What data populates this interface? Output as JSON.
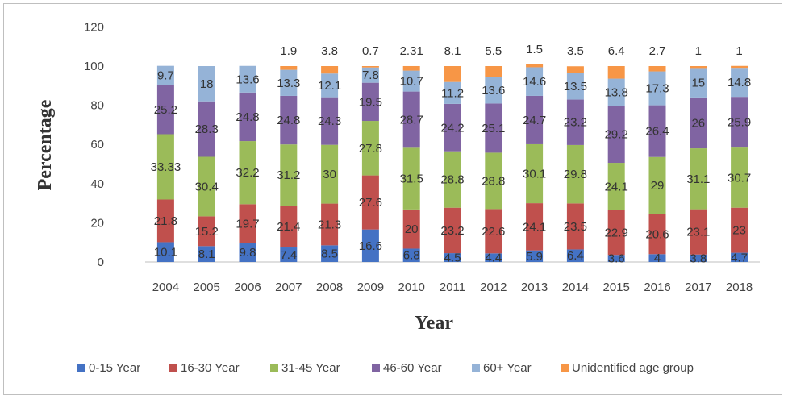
{
  "chart_data": {
    "type": "bar",
    "stacked": true,
    "xlabel": "Year",
    "ylabel": "Percentage",
    "ylim": [
      0,
      120
    ],
    "yticks": [
      0,
      20,
      40,
      60,
      80,
      100,
      120
    ],
    "grid": false,
    "legend_position": "bottom",
    "categories": [
      "2004",
      "2005",
      "2006",
      "2007",
      "2008",
      "2009",
      "2010",
      "2011",
      "2012",
      "2013",
      "2014",
      "2015",
      "2016",
      "2017",
      "2018"
    ],
    "series": [
      {
        "name": "0-15 Year",
        "color": "#4472c4",
        "values": [
          10.1,
          8.1,
          9.8,
          7.4,
          8.5,
          16.6,
          6.8,
          4.5,
          4.4,
          5.9,
          6.4,
          3.6,
          4,
          3.8,
          4.7
        ],
        "labels": [
          "10.1",
          "8.1",
          "9.8",
          "7.4",
          "8.5",
          "16.6",
          "6.8",
          "4.5",
          "4.4",
          "5.9",
          "6.4",
          "3.6",
          "4",
          "3.8",
          "4.7"
        ]
      },
      {
        "name": "16-30 Year",
        "color": "#c0504d",
        "values": [
          21.8,
          15.2,
          19.7,
          21.4,
          21.3,
          27.6,
          20,
          23.2,
          22.6,
          24.1,
          23.5,
          22.9,
          20.6,
          23.1,
          23
        ],
        "labels": [
          "21.8",
          "15.2",
          "19.7",
          "21.4",
          "21.3",
          "27.6",
          "20",
          "23.2",
          "22.6",
          "24.1",
          "23.5",
          "22.9",
          "20.6",
          "23.1",
          "23"
        ]
      },
      {
        "name": "31-45 Year",
        "color": "#9bbb59",
        "values": [
          33.33,
          30.4,
          32.2,
          31.2,
          30,
          27.8,
          31.5,
          28.8,
          28.8,
          30.1,
          29.8,
          24.1,
          29,
          31.1,
          30.7
        ],
        "labels": [
          "33.33",
          "30.4",
          "32.2",
          "31.2",
          "30",
          "27.8",
          "31.5",
          "28.8",
          "28.8",
          "30.1",
          "29.8",
          "24.1",
          "29",
          "31.1",
          "30.7"
        ]
      },
      {
        "name": "46-60 Year",
        "color": "#8064a2",
        "values": [
          25.2,
          28.3,
          24.8,
          24.8,
          24.3,
          19.5,
          28.7,
          24.2,
          25.1,
          24.7,
          23.2,
          29.2,
          26.4,
          26,
          25.9
        ],
        "labels": [
          "25.2",
          "28.3",
          "24.8",
          "24.8",
          "24.3",
          "19.5",
          "28.7",
          "24.2",
          "25.1",
          "24.7",
          "23.2",
          "29.2",
          "26.4",
          "26",
          "25.9"
        ]
      },
      {
        "name": "60+ Year",
        "color": "#95b3d7",
        "values": [
          9.7,
          18,
          13.6,
          13.3,
          12.1,
          7.8,
          10.7,
          11.2,
          13.6,
          14.6,
          13.5,
          13.8,
          17.3,
          15,
          14.8
        ],
        "labels": [
          "9.7",
          "18",
          "13.6",
          "13.3",
          "12.1",
          "7.8",
          "10.7",
          "11.2",
          "13.6",
          "14.6",
          "13.5",
          "13.8",
          "17.3",
          "15",
          "14.8"
        ]
      },
      {
        "name": "Unidentified  age group",
        "color": "#f79646",
        "values": [
          0,
          0,
          0,
          1.9,
          3.8,
          0.7,
          2.31,
          8.1,
          5.5,
          1.5,
          3.5,
          6.4,
          2.7,
          1,
          1
        ],
        "labels": [
          "",
          "",
          "",
          "1.9",
          "3.8",
          "0.7",
          "2.31",
          "8.1",
          "5.5",
          "1.5",
          "3.5",
          "6.4",
          "2.7",
          "1",
          "1"
        ]
      }
    ]
  }
}
